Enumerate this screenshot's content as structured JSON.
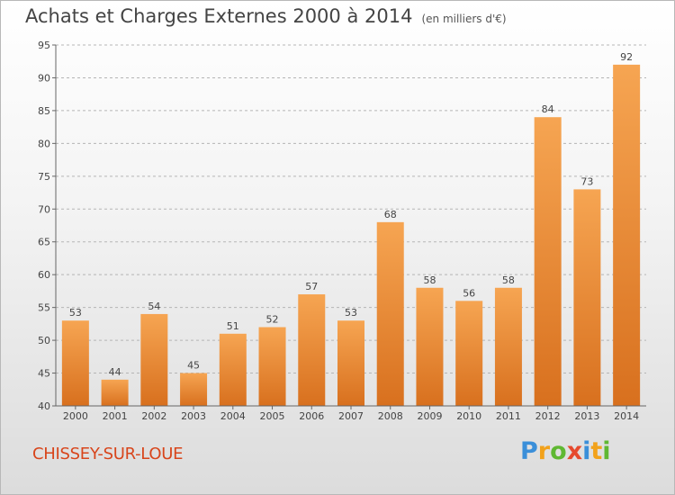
{
  "header": {
    "title": "Achats et Charges Externes 2000 à 2014",
    "subtitle": "(en milliers d'€)"
  },
  "footer": {
    "commune": "CHISSEY-SUR-LOUE",
    "logo_text": "Proxiti"
  },
  "colors": {
    "bar_light": "#f6a552",
    "bar_dark": "#d8701e",
    "grid": "#b5b5b5",
    "commune_text": "#d8451b"
  },
  "chart_data": {
    "type": "bar",
    "title": "Achats et Charges Externes 2000 à 2014",
    "subtitle": "(en milliers d'€)",
    "categories": [
      "2000",
      "2001",
      "2002",
      "2003",
      "2004",
      "2005",
      "2006",
      "2007",
      "2008",
      "2009",
      "2010",
      "2011",
      "2012",
      "2013",
      "2014"
    ],
    "values": [
      53,
      44,
      54,
      45,
      51,
      52,
      57,
      53,
      68,
      58,
      56,
      58,
      84,
      73,
      92
    ],
    "ylim": [
      40,
      95
    ],
    "yticks": [
      40,
      45,
      50,
      55,
      60,
      65,
      70,
      75,
      80,
      85,
      90,
      95
    ],
    "grid": true,
    "xlabel": "",
    "ylabel": ""
  }
}
